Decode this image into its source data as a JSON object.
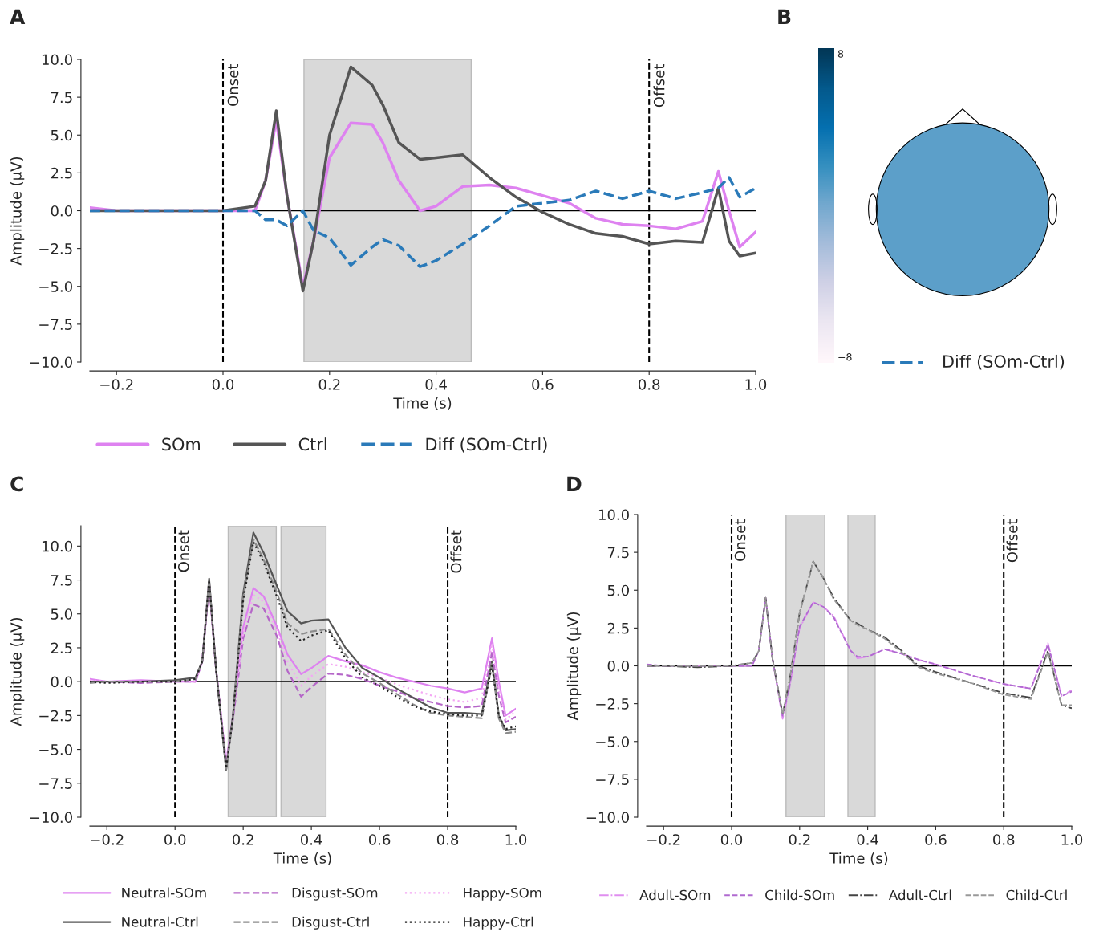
{
  "chart_data": [
    {
      "type": "line",
      "title": "A",
      "xlabel": "Time (s)",
      "ylabel": "Amplitude (µV)",
      "x": [
        -0.25,
        -0.2,
        -0.1,
        0,
        0.06,
        0.08,
        0.1,
        0.12,
        0.15,
        0.17,
        0.2,
        0.24,
        0.28,
        0.3,
        0.33,
        0.37,
        0.4,
        0.45,
        0.5,
        0.55,
        0.6,
        0.65,
        0.7,
        0.75,
        0.8,
        0.85,
        0.9,
        0.93,
        0.95,
        0.97,
        1.0
      ],
      "series": [
        {
          "name": "SOm",
          "color": "#de82f0",
          "line_style": "solid",
          "values": [
            0.2,
            0,
            0,
            0,
            0,
            2,
            6.0,
            1,
            -5,
            -2,
            3.5,
            5.8,
            5.7,
            4.5,
            2.0,
            0,
            0.3,
            1.6,
            1.7,
            1.5,
            1.0,
            0.5,
            -0.5,
            -0.9,
            -1.0,
            -1.2,
            -0.7,
            2.6,
            0,
            -2.4,
            -1.4
          ]
        },
        {
          "name": "Ctrl",
          "color": "#555555",
          "line_style": "solid",
          "values": [
            0,
            0,
            0,
            0,
            0.3,
            2,
            6.6,
            1.0,
            -5.3,
            -2.0,
            5.0,
            9.5,
            8.3,
            7.0,
            4.5,
            3.4,
            3.5,
            3.7,
            2.2,
            0.9,
            -0.1,
            -0.9,
            -1.5,
            -1.7,
            -2.2,
            -2.0,
            -2.1,
            1.5,
            -2.0,
            -3.0,
            -2.8
          ]
        },
        {
          "name": "Diff (SOm-Ctrl)",
          "color": "#2a7ab9",
          "line_style": "dashed",
          "values": [
            0,
            0,
            0,
            0,
            0,
            -0.6,
            -0.6,
            -1.0,
            0,
            -1.3,
            -1.8,
            -3.6,
            -2.4,
            -1.9,
            -2.3,
            -3.7,
            -3.3,
            -2.2,
            -1.0,
            0.3,
            0.5,
            0.7,
            1.3,
            0.8,
            1.3,
            0.8,
            1.2,
            1.5,
            2.2,
            0.9,
            1.5
          ]
        }
      ],
      "xlim": [
        -0.25,
        1.0
      ],
      "xticks": [
        {
          "value": -0.2,
          "label": "−0.2"
        },
        {
          "value": 0,
          "label": "0.0"
        },
        {
          "value": 0.2,
          "label": "0.2"
        },
        {
          "value": 0.4,
          "label": "0.4"
        },
        {
          "value": 0.6,
          "label": "0.6"
        },
        {
          "value": 0.8,
          "label": "0.8"
        },
        {
          "value": 1,
          "label": "1.0"
        }
      ],
      "ylim": [
        -10,
        10
      ],
      "yticks": [
        {
          "value": -10,
          "label": "−10.0"
        },
        {
          "value": -7.5,
          "label": "−7.5"
        },
        {
          "value": -5,
          "label": "−5.0"
        },
        {
          "value": -2.5,
          "label": "−2.5"
        },
        {
          "value": 0,
          "label": "0.0"
        },
        {
          "value": 2.5,
          "label": "2.5"
        },
        {
          "value": 5,
          "label": "5.0"
        },
        {
          "value": 7.5,
          "label": "7.5"
        },
        {
          "value": 10,
          "label": "10.0"
        }
      ],
      "ref_lines": [
        {
          "axis": "x",
          "value": 0,
          "label": "Onset",
          "color": "#000000",
          "line_style": "dashed"
        },
        {
          "axis": "x",
          "value": 0.8,
          "label": "Offset",
          "color": "#000000",
          "line_style": "dashed"
        },
        {
          "axis": "y",
          "value": 0,
          "color": "#000000",
          "line_style": "solid"
        }
      ],
      "bands": [
        {
          "axis": "x",
          "from": 0.152,
          "to": 0.466,
          "color": "#d9d9d9"
        }
      ],
      "legend": "bottom"
    },
    {
      "type": "other",
      "title": "B",
      "annotations": [
        "8",
        "−8",
        "Diff (SOm-Ctrl)"
      ]
    },
    {
      "type": "line",
      "title": "C",
      "xlabel": "Time (s)",
      "ylabel": "Amplitude (µV)",
      "x": [
        -0.25,
        -0.2,
        -0.1,
        0,
        0.06,
        0.08,
        0.1,
        0.12,
        0.15,
        0.17,
        0.2,
        0.23,
        0.26,
        0.3,
        0.33,
        0.37,
        0.4,
        0.45,
        0.5,
        0.55,
        0.6,
        0.65,
        0.7,
        0.75,
        0.8,
        0.85,
        0.9,
        0.93,
        0.95,
        0.97,
        1.0
      ],
      "series": [
        {
          "name": "Neutral-SOm",
          "color": "#de82f0",
          "line_style": "solid",
          "values": [
            0.2,
            0,
            0.1,
            0,
            0,
            1.5,
            7.3,
            1,
            -6.0,
            -2.5,
            4.0,
            6.9,
            6.3,
            4.0,
            2.0,
            0.55,
            1.0,
            1.9,
            1.5,
            1.2,
            0.7,
            0.3,
            0,
            -0.3,
            -0.5,
            -0.8,
            -0.5,
            3.2,
            0,
            -2.5,
            -2.0
          ]
        },
        {
          "name": "Disgust-SOm",
          "color": "#b566c8",
          "line_style": "dashed",
          "values": [
            0,
            0,
            -0.1,
            0,
            0,
            1.5,
            7.3,
            1,
            -6.0,
            -2.8,
            3.2,
            5.7,
            5.4,
            3.3,
            0.8,
            -1.1,
            -0.4,
            0.6,
            0.5,
            0.2,
            -0.3,
            -0.7,
            -1.2,
            -1.5,
            -1.8,
            -1.9,
            -1.8,
            2.2,
            -1.0,
            -3.0,
            -2.6
          ]
        },
        {
          "name": "Happy-SOm",
          "color": "#f4a6f4",
          "line_style": "dotted",
          "values": [
            0.1,
            0,
            0,
            0,
            0,
            1.5,
            7.3,
            1,
            -6.0,
            -2.6,
            3.6,
            6.4,
            5.9,
            3.7,
            1.5,
            -0.3,
            0.4,
            1.3,
            1.1,
            0.7,
            0.3,
            -0.2,
            -0.6,
            -1.0,
            -1.3,
            -1.5,
            -1.2,
            2.8,
            -0.5,
            -2.8,
            -2.2
          ]
        },
        {
          "name": "Neutral-Ctrl",
          "color": "#555555",
          "line_style": "solid",
          "values": [
            0,
            0,
            0,
            0.1,
            0.3,
            1.5,
            7.6,
            1,
            -6.5,
            -2.5,
            6.5,
            11.0,
            9.5,
            7.0,
            5.2,
            4.3,
            4.5,
            4.6,
            2.5,
            1.0,
            0.3,
            -0.5,
            -1.2,
            -1.9,
            -2.3,
            -2.3,
            -2.4,
            1.5,
            -2.5,
            -3.6,
            -3.5
          ]
        },
        {
          "name": "Disgust-Ctrl",
          "color": "#8c8c8c",
          "line_style": "dashed",
          "values": [
            -0.1,
            0,
            0,
            0,
            0.2,
            1.5,
            7.5,
            1,
            -6.5,
            -2.6,
            6.2,
            10.5,
            9.0,
            6.5,
            4.3,
            3.5,
            3.7,
            3.9,
            2.0,
            0.6,
            -0.1,
            -0.9,
            -1.7,
            -2.3,
            -2.5,
            -2.6,
            -2.7,
            1.3,
            -2.7,
            -3.8,
            -3.7
          ]
        },
        {
          "name": "Happy-Ctrl",
          "color": "#222222",
          "line_style": "dotted",
          "values": [
            0,
            -0.1,
            0,
            0,
            0.2,
            1.5,
            7.5,
            1,
            -6.4,
            -2.6,
            6.0,
            10.3,
            8.8,
            6.2,
            4.0,
            3.0,
            3.4,
            3.8,
            1.7,
            0.3,
            -0.3,
            -1.1,
            -1.8,
            -2.2,
            -2.4,
            -2.5,
            -2.5,
            1.2,
            -2.5,
            -3.5,
            -3.3
          ]
        }
      ],
      "xlim": [
        -0.25,
        1.0
      ],
      "xticks": [
        {
          "value": -0.2,
          "label": "−0.2"
        },
        {
          "value": 0,
          "label": "0.0"
        },
        {
          "value": 0.2,
          "label": "0.2"
        },
        {
          "value": 0.4,
          "label": "0.4"
        },
        {
          "value": 0.6,
          "label": "0.6"
        },
        {
          "value": 0.8,
          "label": "0.8"
        },
        {
          "value": 1,
          "label": "1.0"
        }
      ],
      "ylim": [
        -10,
        11.5
      ],
      "yticks": [
        {
          "value": -10,
          "label": "−10.0"
        },
        {
          "value": -7.5,
          "label": "−7.5"
        },
        {
          "value": -5,
          "label": "−5.0"
        },
        {
          "value": -2.5,
          "label": "−2.5"
        },
        {
          "value": 0,
          "label": "0.0"
        },
        {
          "value": 2.5,
          "label": "2.5"
        },
        {
          "value": 5,
          "label": "5.0"
        },
        {
          "value": 7.5,
          "label": "7.5"
        },
        {
          "value": 10,
          "label": "10.0"
        }
      ],
      "ref_lines": [
        {
          "axis": "x",
          "value": 0,
          "label": "Onset",
          "color": "#000000",
          "line_style": "dashed"
        },
        {
          "axis": "x",
          "value": 0.8,
          "label": "Offset",
          "color": "#000000",
          "line_style": "dashed"
        },
        {
          "axis": "y",
          "value": 0,
          "color": "#000000",
          "line_style": "solid"
        }
      ],
      "bands": [
        {
          "axis": "x",
          "from": 0.156,
          "to": 0.297,
          "color": "#d9d9d9"
        },
        {
          "axis": "x",
          "from": 0.311,
          "to": 0.443,
          "color": "#d9d9d9"
        }
      ],
      "legend": "bottom"
    },
    {
      "type": "line",
      "title": "D",
      "xlabel": "Time (s)",
      "ylabel": "Amplitude (µV)",
      "x": [
        -0.25,
        -0.2,
        -0.1,
        0,
        0.06,
        0.08,
        0.1,
        0.12,
        0.15,
        0.17,
        0.2,
        0.24,
        0.27,
        0.3,
        0.35,
        0.37,
        0.4,
        0.45,
        0.5,
        0.55,
        0.6,
        0.7,
        0.8,
        0.88,
        0.93,
        0.97,
        1.0
      ],
      "series": [
        {
          "name": "Adult-SOm",
          "color": "#e08ef0",
          "line_style": "dashdot",
          "values": [
            0,
            0,
            0,
            0,
            0,
            1.0,
            4.5,
            0.5,
            -3.5,
            -1.5,
            2.5,
            4.2,
            3.9,
            3.3,
            1.0,
            0.5,
            0.6,
            1.1,
            0.8,
            0.4,
            0.1,
            -0.6,
            -1.2,
            -1.5,
            1.5,
            -2.0,
            -1.6
          ]
        },
        {
          "name": "Child-SOm",
          "color": "#b06ad0",
          "line_style": "dashed",
          "values": [
            0.1,
            0,
            0,
            0,
            0,
            1.0,
            4.5,
            0.5,
            -3.3,
            -1.4,
            2.6,
            4.2,
            3.9,
            3.2,
            1.0,
            0.6,
            0.6,
            1.1,
            0.8,
            0.4,
            0.1,
            -0.6,
            -1.2,
            -1.5,
            1.4,
            -2.0,
            -1.7
          ]
        },
        {
          "name": "Adult-Ctrl",
          "color": "#444444",
          "line_style": "dashdot",
          "values": [
            0,
            0,
            -0.1,
            0,
            0.2,
            1.0,
            4.5,
            0.5,
            -3.2,
            -1.0,
            3.5,
            6.9,
            5.8,
            4.5,
            3.0,
            2.8,
            2.4,
            1.9,
            1.0,
            0.0,
            -0.4,
            -1.1,
            -1.8,
            -2.1,
            1.0,
            -2.6,
            -2.8
          ]
        },
        {
          "name": "Child-Ctrl",
          "color": "#999999",
          "line_style": "dashed",
          "values": [
            0,
            0,
            0,
            0,
            0.2,
            1.0,
            4.5,
            0.5,
            -3.2,
            -1.0,
            3.5,
            6.9,
            5.8,
            4.4,
            3.0,
            2.7,
            2.4,
            1.8,
            0.9,
            -0.1,
            -0.5,
            -1.1,
            -1.9,
            -2.2,
            0.9,
            -2.6,
            -2.6
          ]
        }
      ],
      "xlim": [
        -0.25,
        1.0
      ],
      "xticks": [
        {
          "value": -0.2,
          "label": "−0.2"
        },
        {
          "value": 0,
          "label": "0.0"
        },
        {
          "value": 0.2,
          "label": "0.2"
        },
        {
          "value": 0.4,
          "label": "0.4"
        },
        {
          "value": 0.6,
          "label": "0.6"
        },
        {
          "value": 0.8,
          "label": "0.8"
        },
        {
          "value": 1,
          "label": "1.0"
        }
      ],
      "ylim": [
        -10,
        10
      ],
      "yticks": [
        {
          "value": -10,
          "label": "−10.0"
        },
        {
          "value": -7.5,
          "label": "−7.5"
        },
        {
          "value": -5,
          "label": "−5.0"
        },
        {
          "value": -2.5,
          "label": "−2.5"
        },
        {
          "value": 0,
          "label": "0.0"
        },
        {
          "value": 2.5,
          "label": "2.5"
        },
        {
          "value": 5,
          "label": "5.0"
        },
        {
          "value": 7.5,
          "label": "7.5"
        },
        {
          "value": 10,
          "label": "10.0"
        }
      ],
      "ref_lines": [
        {
          "axis": "x",
          "value": 0,
          "label": "Onset",
          "color": "#000000",
          "line_style": "dashed"
        },
        {
          "axis": "x",
          "value": 0.8,
          "label": "Offset",
          "color": "#000000",
          "line_style": "dashed"
        },
        {
          "axis": "y",
          "value": 0,
          "color": "#000000",
          "line_style": "solid"
        }
      ],
      "bands": [
        {
          "axis": "x",
          "from": 0.16,
          "to": 0.274,
          "color": "#d9d9d9"
        },
        {
          "axis": "x",
          "from": 0.342,
          "to": 0.422,
          "color": "#d9d9d9"
        }
      ],
      "legend": "bottom"
    }
  ]
}
